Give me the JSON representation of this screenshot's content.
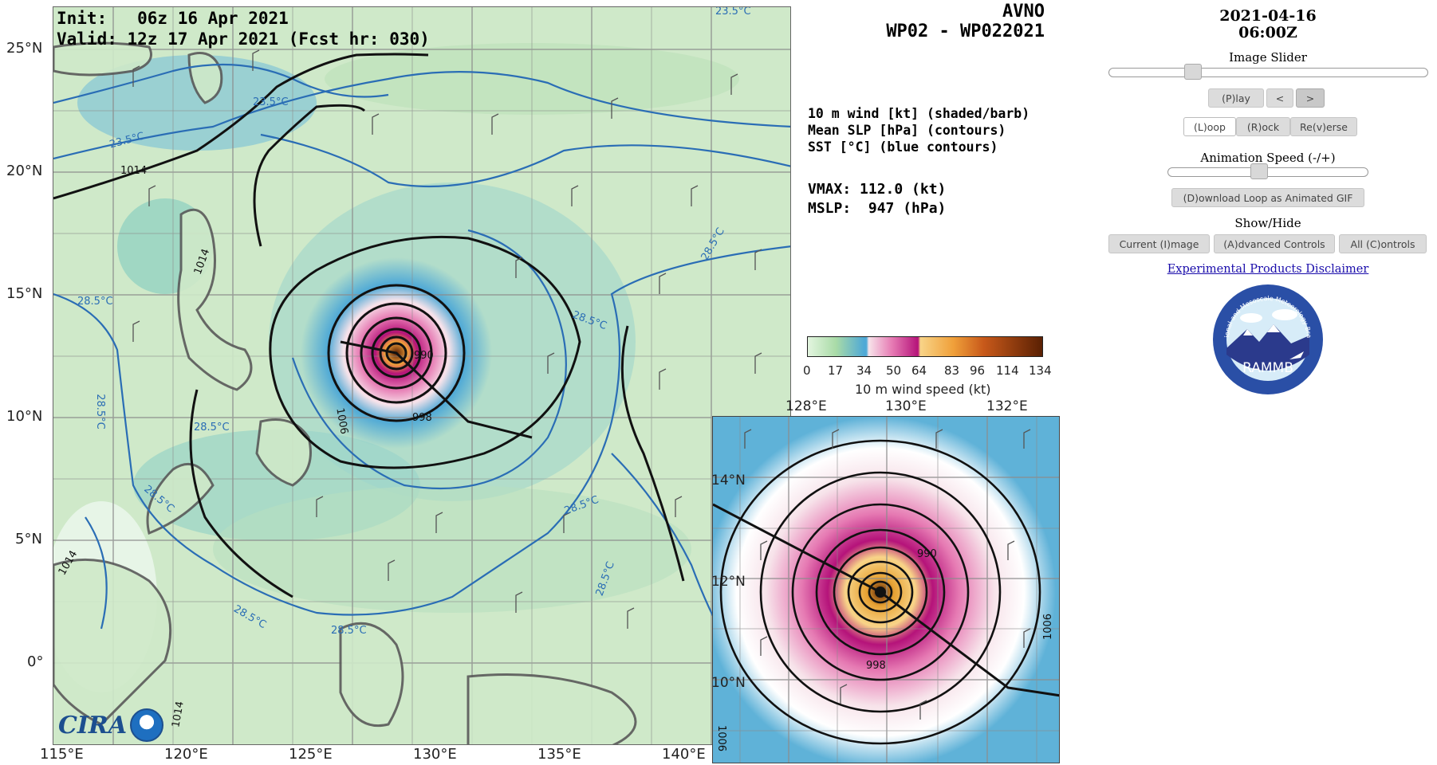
{
  "main_map": {
    "init_line": "Init:   06z 16 Apr 2021",
    "valid_line": "Valid: 12z 17 Apr 2021 (Fcst hr: 030)",
    "lat_labels": [
      "25°N",
      "20°N",
      "15°N",
      "10°N",
      "5°N",
      "0°"
    ],
    "lon_labels": [
      "115°E",
      "120°E",
      "125°E",
      "130°E",
      "135°E",
      "140°E"
    ],
    "sst_labels": [
      "23.5°C",
      "23.5°C",
      "23.5°C",
      "28.5°C",
      "28.5°C",
      "28.5°C",
      "28.5°C",
      "28.5°C",
      "28.5°C",
      "28.5°C",
      "28.5°C",
      "28.5°C",
      "28.5°C"
    ],
    "slp_labels": [
      "1014",
      "1014",
      "1014",
      "1006",
      "998",
      "990",
      "1014"
    ],
    "cira_logo_text": "CIRA"
  },
  "header": {
    "model": "AVNO",
    "storm_id": "WP02 - WP022021"
  },
  "legend": {
    "line1": "10 m wind [kt] (shaded/barb)",
    "line2": "Mean SLP [hPa] (contours)",
    "line3": "SST [°C] (blue contours)",
    "vmax": "VMAX: 112.0 (kt)",
    "mslp": "MSLP:  947 (hPa)",
    "colorbar_ticks": [
      "0",
      "17",
      "34",
      "50",
      "64",
      "83",
      "96",
      "114",
      "134"
    ],
    "colorbar_label": "10 m wind speed (kt)",
    "colors": [
      "#e3f5df",
      "#a9dba7",
      "#4fa9d6",
      "#f7e3ea",
      "#e67ab3",
      "#b5137a",
      "#f8d488",
      "#f0a03a",
      "#c8591a",
      "#5a2003"
    ]
  },
  "inset": {
    "lon_labels": [
      "128°E",
      "130°E",
      "132°E"
    ],
    "lat_labels": [
      "14°N",
      "12°N",
      "10°N"
    ],
    "slp_labels": [
      "990",
      "998",
      "1006",
      "1006"
    ]
  },
  "controls": {
    "date": "2021-04-16",
    "time": "06:00Z",
    "image_slider_label": "Image Slider",
    "image_slider_value": 0.25,
    "play": "(P)lay",
    "prev": "<",
    "next": ">",
    "loop": "(L)oop",
    "rock": "(R)ock",
    "reverse": "Re(v)erse",
    "speed_label": "Animation Speed (-/+)",
    "speed_value": 0.45,
    "download": "(D)ownload Loop as Animated GIF",
    "show_hide": "Show/Hide",
    "current_image": "Current (I)mage",
    "advanced_controls": "(A)dvanced Controls",
    "all_controls": "All (C)ontrols",
    "disclaimer": "Experimental Products Disclaimer",
    "rammb_ring_text": "Regional and Mesoscale Meteorology Branch",
    "rammb_text": "RAMMB"
  }
}
